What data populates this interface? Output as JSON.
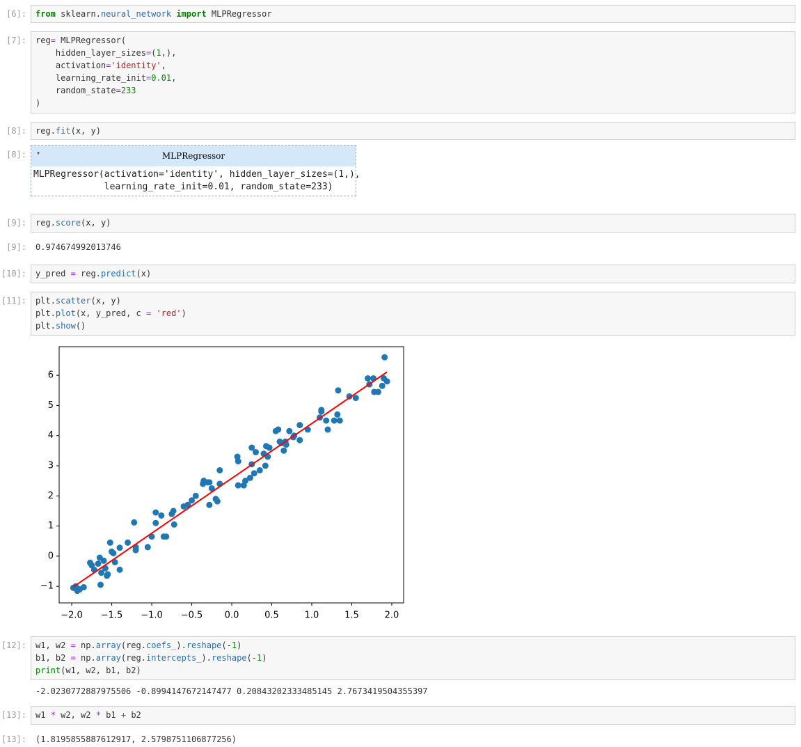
{
  "cells": [
    {
      "prompt": "[6]:",
      "code": [
        "from sklearn.neural_network import MLPRegressor"
      ]
    },
    {
      "prompt": "[7]:",
      "code": [
        "reg= MLPRegressor(",
        "    hidden_layer_sizes=(1,),",
        "    activation='identity',",
        "    learning_rate_init=0.01,",
        "    random_state=233",
        ")"
      ]
    },
    {
      "prompt": "[8]:",
      "code": [
        "reg.fit(x, y)"
      ],
      "output": {
        "prompt": "[8]:",
        "toggle": "▾",
        "title": "MLPRegressor",
        "text": [
          "MLPRegressor(activation='identity', hidden_layer_sizes=(1,),",
          "             learning_rate_init=0.01, random_state=233)"
        ]
      }
    },
    {
      "prompt": "[9]:",
      "code": [
        "reg.score(x, y)"
      ],
      "output": {
        "prompt": "[9]:",
        "text": [
          "0.974674992013746"
        ]
      }
    },
    {
      "prompt": "[10]:",
      "code": [
        "y_pred = reg.predict(x)"
      ]
    },
    {
      "prompt": "[11]:",
      "code": [
        "plt.scatter(x, y)",
        "plt.plot(x, y_pred, c = 'red')",
        "plt.show()"
      ]
    },
    {
      "prompt": "[12]:",
      "code": [
        "w1, w2 = np.array(reg.coefs_).reshape(-1)",
        "b1, b2 = np.array(reg.intercepts_).reshape(-1)",
        "print(w1, w2, b1, b2)"
      ],
      "output": {
        "text": [
          "-2.0230772887975506 -0.8994147672147477 0.20843202333485145 2.7673419504355397"
        ]
      }
    },
    {
      "prompt": "[13]:",
      "code": [
        "w1 * w2, w2 * b1 + b2"
      ],
      "output": {
        "prompt": "[13]:",
        "text": [
          "(1.8195855887612917, 2.5798751106877256)"
        ]
      }
    }
  ],
  "chart_data": {
    "type": "scatter",
    "color": "#1f77b4",
    "x": [
      -1.98,
      -1.95,
      -1.93,
      -1.9,
      -1.85,
      -1.77,
      -1.75,
      -1.72,
      -1.67,
      -1.65,
      -1.63,
      -1.64,
      -1.6,
      -1.58,
      -1.56,
      -1.55,
      -1.52,
      -1.5,
      -1.48,
      -1.46,
      -1.4,
      -1.4,
      -1.3,
      -1.22,
      -1.2,
      -1.2,
      -1.05,
      -1.0,
      -0.95,
      -0.95,
      -0.88,
      -0.85,
      -0.82,
      -0.75,
      -0.73,
      -0.72,
      -0.6,
      -0.55,
      -0.5,
      -0.45,
      -0.35,
      -0.36,
      -0.3,
      -0.28,
      -0.28,
      -0.25,
      -0.2,
      -0.18,
      -0.15,
      -0.15,
      0.07,
      0.08,
      0.08,
      0.15,
      0.17,
      0.23,
      0.25,
      0.25,
      0.28,
      0.3,
      0.35,
      0.4,
      0.42,
      0.43,
      0.45,
      0.47,
      0.55,
      0.58,
      0.6,
      0.62,
      0.65,
      0.67,
      0.68,
      0.72,
      0.77,
      0.78,
      0.85,
      0.85,
      0.95,
      1.1,
      1.12,
      1.12,
      1.18,
      1.2,
      1.28,
      1.32,
      1.33,
      1.35,
      1.47,
      1.55,
      1.7,
      1.72,
      1.77,
      1.78,
      1.83,
      1.88,
      1.9,
      1.91,
      1.94
    ],
    "y": [
      -1.05,
      -1.0,
      -1.15,
      -1.1,
      -1.03,
      -0.22,
      -0.3,
      -0.45,
      -0.25,
      -0.05,
      -0.55,
      -0.95,
      -0.15,
      -0.4,
      -0.65,
      -0.6,
      0.45,
      0.15,
      0.1,
      -0.2,
      -0.45,
      0.28,
      0.45,
      1.12,
      0.3,
      0.2,
      0.3,
      0.65,
      1.45,
      1.1,
      1.35,
      0.65,
      0.65,
      1.4,
      1.5,
      1.05,
      1.65,
      1.7,
      1.85,
      2.0,
      2.5,
      2.4,
      2.45,
      2.45,
      1.7,
      2.25,
      1.9,
      1.82,
      2.4,
      2.85,
      3.3,
      3.15,
      2.35,
      2.35,
      2.5,
      2.6,
      3.6,
      3.05,
      2.75,
      3.45,
      2.85,
      3.4,
      3.0,
      3.65,
      3.3,
      3.6,
      4.15,
      4.2,
      3.8,
      3.75,
      3.5,
      3.8,
      3.7,
      4.15,
      3.95,
      4.0,
      3.85,
      4.35,
      4.2,
      4.6,
      4.8,
      4.85,
      4.5,
      4.2,
      4.5,
      4.7,
      5.5,
      4.5,
      5.3,
      5.25,
      5.9,
      5.7,
      5.9,
      5.45,
      5.45,
      5.65,
      5.9,
      6.6,
      5.8
    ],
    "line": {
      "color": "red",
      "x": [
        -1.98,
        1.94
      ],
      "y": [
        -1.02,
        6.11
      ]
    },
    "xlim": [
      -2.157,
      2.148
    ],
    "ylim": [
      -1.55,
      6.95
    ],
    "xticks": [
      {
        "value": -2,
        "label": "−2.0"
      },
      {
        "value": -1.5,
        "label": "−1.5"
      },
      {
        "value": -1,
        "label": "−1.0"
      },
      {
        "value": -0.5,
        "label": "−0.5"
      },
      {
        "value": 0,
        "label": "0.0"
      },
      {
        "value": 0.5,
        "label": "0.5"
      },
      {
        "value": 1,
        "label": "1.0"
      },
      {
        "value": 1.5,
        "label": "1.5"
      },
      {
        "value": 2,
        "label": "2.0"
      }
    ],
    "yticks": [
      {
        "value": -1,
        "label": "−1"
      },
      0,
      1,
      2,
      3,
      4,
      5,
      6
    ]
  }
}
